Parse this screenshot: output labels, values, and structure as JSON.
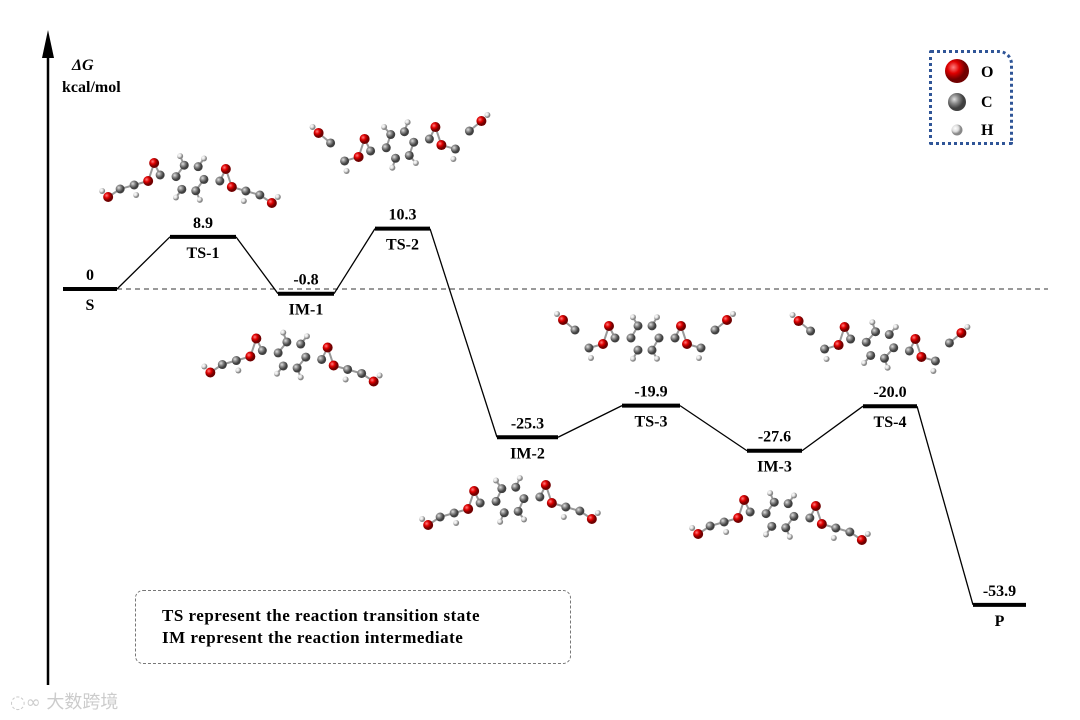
{
  "axis": {
    "symbol": "ΔG",
    "unit": "kcal/mol"
  },
  "chart_data": {
    "type": "energy-profile",
    "ylabel": "ΔG kcal/mol",
    "reference_line": 0,
    "states": [
      {
        "name": "S",
        "value": 0,
        "label": "0"
      },
      {
        "name": "TS-1",
        "value": 8.9,
        "label": "8.9"
      },
      {
        "name": "IM-1",
        "value": -0.8,
        "label": "-0.8"
      },
      {
        "name": "TS-2",
        "value": 10.3,
        "label": "10.3"
      },
      {
        "name": "IM-2",
        "value": -25.3,
        "label": "-25.3"
      },
      {
        "name": "TS-3",
        "value": -19.9,
        "label": "-19.9"
      },
      {
        "name": "IM-3",
        "value": -27.6,
        "label": "-27.6"
      },
      {
        "name": "TS-4",
        "value": -20.0,
        "label": "-20.0"
      },
      {
        "name": "P",
        "value": -53.9,
        "label": "-53.9"
      }
    ]
  },
  "legend": {
    "items": [
      {
        "symbol": "O",
        "color": "#e00000"
      },
      {
        "symbol": "C",
        "color": "#808080"
      },
      {
        "symbol": "H",
        "color": "#e8e8e8"
      }
    ]
  },
  "note": {
    "line1": "TS represent the reaction transition state",
    "line2": "IM represent the reaction intermediate"
  },
  "watermark": "大数跨境"
}
